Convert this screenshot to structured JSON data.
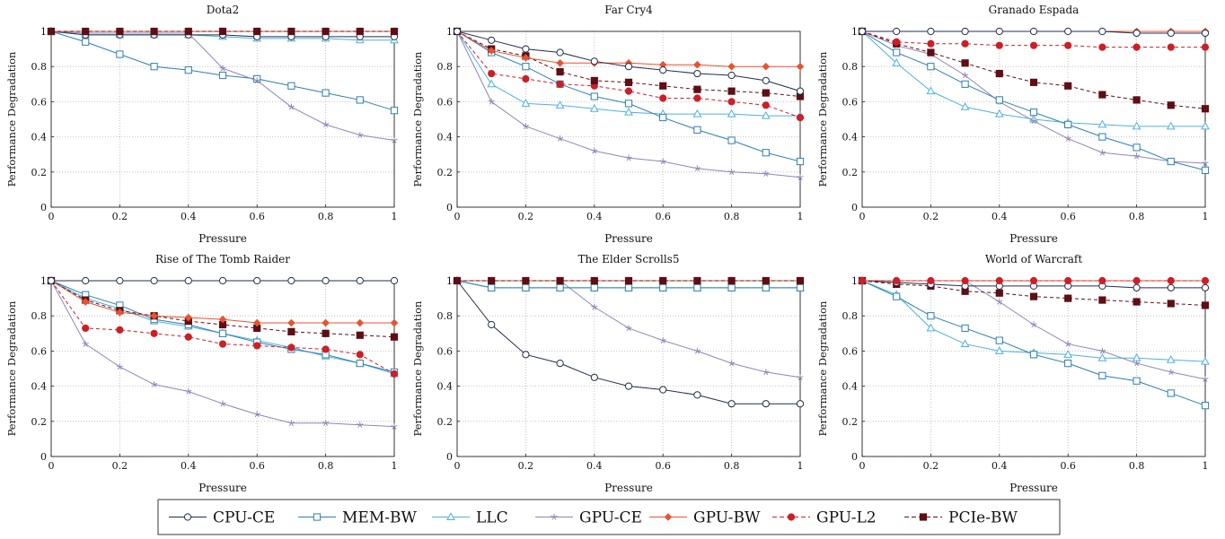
{
  "colors": {
    "CPU-CE": "#1f2d4d",
    "MEM-BW": "#2e7fb0",
    "LLC": "#4fb0dc",
    "GPU-CE": "#8f86b8",
    "GPU-BW": "#e8532f",
    "GPU-L2": "#cc1f26",
    "PCIe-BW": "#5e0e14"
  },
  "legend": {
    "placement": "bottom-center",
    "entries": [
      {
        "name": "CPU-CE",
        "marker": "circle",
        "dash": false
      },
      {
        "name": "MEM-BW",
        "marker": "square",
        "dash": false
      },
      {
        "name": "LLC",
        "marker": "triangle",
        "dash": false
      },
      {
        "name": "GPU-CE",
        "marker": "star",
        "dash": false
      },
      {
        "name": "GPU-BW",
        "marker": "diamond",
        "dash": false
      },
      {
        "name": "GPU-L2",
        "marker": "filled-circle",
        "dash": true
      },
      {
        "name": "PCIe-BW",
        "marker": "filled-square",
        "dash": true
      }
    ]
  },
  "chart_data": [
    {
      "type": "line",
      "title": "Dota2",
      "xlabel": "Pressure",
      "ylabel": "Performance Degradation",
      "xlim": [
        0,
        1
      ],
      "ylim": [
        0,
        1
      ],
      "x": [
        0,
        0.1,
        0.2,
        0.3,
        0.4,
        0.5,
        0.6,
        0.7,
        0.8,
        0.9,
        1
      ],
      "xticks": [
        "0",
        "0.2",
        "0.4",
        "0.6",
        "0.8",
        "1"
      ],
      "yticks": [
        "0",
        "0.2",
        "0.4",
        "0.6",
        "0.8",
        "1"
      ],
      "grid": true,
      "series": [
        {
          "name": "LLC",
          "values": [
            1,
            0.98,
            0.98,
            0.98,
            0.98,
            0.97,
            0.96,
            0.96,
            0.96,
            0.95,
            0.95
          ]
        },
        {
          "name": "CPU-CE",
          "values": [
            1,
            0.98,
            0.98,
            0.98,
            0.98,
            0.98,
            0.97,
            0.97,
            0.97,
            0.97,
            0.97
          ]
        },
        {
          "name": "MEM-BW",
          "values": [
            1,
            0.94,
            0.87,
            0.8,
            0.78,
            0.75,
            0.73,
            0.69,
            0.65,
            0.61,
            0.55
          ]
        },
        {
          "name": "GPU-CE",
          "values": [
            1,
            0.99,
            0.99,
            0.99,
            0.99,
            0.79,
            0.72,
            0.57,
            0.47,
            0.41,
            0.38
          ]
        },
        {
          "name": "GPU-BW",
          "values": [
            1,
            1,
            1,
            1,
            1,
            1,
            1,
            1,
            1,
            1,
            1
          ]
        },
        {
          "name": "GPU-L2",
          "values": [
            1,
            1,
            1,
            1,
            1,
            1,
            1,
            1,
            1,
            1,
            1
          ]
        },
        {
          "name": "PCIe-BW",
          "values": [
            1,
            1,
            1,
            1,
            1,
            1,
            1,
            1,
            1,
            1,
            1
          ]
        }
      ]
    },
    {
      "type": "line",
      "title": "Far Cry4",
      "xlabel": "Pressure",
      "ylabel": "Performance Degradation",
      "xlim": [
        0,
        1
      ],
      "ylim": [
        0,
        1
      ],
      "x": [
        0,
        0.1,
        0.2,
        0.3,
        0.4,
        0.5,
        0.6,
        0.7,
        0.8,
        0.9,
        1
      ],
      "xticks": [
        "0",
        "0.2",
        "0.4",
        "0.6",
        "0.8",
        "1"
      ],
      "yticks": [
        "0",
        "0.2",
        "0.4",
        "0.6",
        "0.8",
        "1"
      ],
      "grid": true,
      "series": [
        {
          "name": "GPU-CE",
          "values": [
            1,
            0.6,
            0.46,
            0.39,
            0.32,
            0.28,
            0.26,
            0.22,
            0.2,
            0.19,
            0.17
          ]
        },
        {
          "name": "LLC",
          "values": [
            1,
            0.7,
            0.59,
            0.58,
            0.56,
            0.54,
            0.53,
            0.53,
            0.53,
            0.52,
            0.52
          ]
        },
        {
          "name": "MEM-BW",
          "values": [
            1,
            0.88,
            0.8,
            0.7,
            0.63,
            0.59,
            0.51,
            0.44,
            0.38,
            0.31,
            0.26
          ]
        },
        {
          "name": "GPU-L2",
          "values": [
            1,
            0.76,
            0.73,
            0.7,
            0.69,
            0.66,
            0.62,
            0.62,
            0.6,
            0.58,
            0.51
          ]
        },
        {
          "name": "PCIe-BW",
          "values": [
            1,
            0.9,
            0.86,
            0.77,
            0.72,
            0.71,
            0.69,
            0.67,
            0.66,
            0.65,
            0.63
          ]
        },
        {
          "name": "GPU-BW",
          "values": [
            1,
            0.89,
            0.85,
            0.82,
            0.82,
            0.82,
            0.81,
            0.81,
            0.8,
            0.8,
            0.8
          ]
        },
        {
          "name": "CPU-CE",
          "values": [
            1,
            0.95,
            0.9,
            0.88,
            0.83,
            0.8,
            0.78,
            0.76,
            0.75,
            0.72,
            0.66
          ]
        }
      ]
    },
    {
      "type": "line",
      "title": "Granado Espada",
      "xlabel": "Pressure",
      "ylabel": "Performance Degradation",
      "xlim": [
        0,
        1
      ],
      "ylim": [
        0,
        1
      ],
      "x": [
        0,
        0.1,
        0.2,
        0.3,
        0.4,
        0.5,
        0.6,
        0.7,
        0.8,
        0.9,
        1
      ],
      "xticks": [
        "0",
        "0.2",
        "0.4",
        "0.6",
        "0.8",
        "1"
      ],
      "yticks": [
        "0",
        "0.2",
        "0.4",
        "0.6",
        "0.8",
        "1"
      ],
      "grid": true,
      "series": [
        {
          "name": "LLC",
          "values": [
            1,
            0.82,
            0.66,
            0.57,
            0.53,
            0.5,
            0.48,
            0.47,
            0.46,
            0.46,
            0.46
          ]
        },
        {
          "name": "GPU-CE",
          "values": [
            1,
            0.92,
            0.87,
            0.75,
            0.6,
            0.49,
            0.39,
            0.31,
            0.29,
            0.26,
            0.25
          ]
        },
        {
          "name": "MEM-BW",
          "values": [
            1,
            0.88,
            0.8,
            0.7,
            0.61,
            0.54,
            0.47,
            0.4,
            0.34,
            0.26,
            0.21
          ]
        },
        {
          "name": "PCIe-BW",
          "values": [
            1,
            0.93,
            0.88,
            0.82,
            0.76,
            0.71,
            0.69,
            0.64,
            0.61,
            0.58,
            0.56
          ]
        },
        {
          "name": "GPU-L2",
          "values": [
            1,
            0.94,
            0.93,
            0.93,
            0.92,
            0.92,
            0.92,
            0.91,
            0.91,
            0.91,
            0.91
          ]
        },
        {
          "name": "GPU-BW",
          "values": [
            1,
            1,
            1,
            1,
            1,
            1,
            1,
            1,
            1,
            1,
            1
          ]
        },
        {
          "name": "CPU-CE",
          "values": [
            1,
            1,
            1,
            1,
            1,
            1,
            1,
            1,
            0.99,
            0.99,
            0.99
          ]
        }
      ]
    },
    {
      "type": "line",
      "title": "Rise of The Tomb Raider",
      "xlabel": "Pressure",
      "ylabel": "Performance Degradation",
      "xlim": [
        0,
        1
      ],
      "ylim": [
        0,
        1
      ],
      "x": [
        0,
        0.1,
        0.2,
        0.3,
        0.4,
        0.5,
        0.6,
        0.7,
        0.8,
        0.9,
        1
      ],
      "xticks": [
        "0",
        "0.2",
        "0.4",
        "0.6",
        "0.8",
        "1"
      ],
      "yticks": [
        "0",
        "0.2",
        "0.4",
        "0.6",
        "0.8",
        "1"
      ],
      "grid": true,
      "series": [
        {
          "name": "GPU-CE",
          "values": [
            1,
            0.64,
            0.51,
            0.41,
            0.37,
            0.3,
            0.24,
            0.19,
            0.19,
            0.18,
            0.17
          ]
        },
        {
          "name": "LLC",
          "values": [
            1,
            0.9,
            0.84,
            0.77,
            0.74,
            0.7,
            0.66,
            0.62,
            0.57,
            0.53,
            0.47
          ]
        },
        {
          "name": "MEM-BW",
          "values": [
            1,
            0.92,
            0.86,
            0.78,
            0.75,
            0.7,
            0.65,
            0.61,
            0.58,
            0.53,
            0.48
          ]
        },
        {
          "name": "GPU-L2",
          "values": [
            1,
            0.73,
            0.72,
            0.7,
            0.68,
            0.64,
            0.63,
            0.62,
            0.61,
            0.58,
            0.47
          ]
        },
        {
          "name": "PCIe-BW",
          "values": [
            1,
            0.89,
            0.83,
            0.8,
            0.77,
            0.75,
            0.73,
            0.71,
            0.7,
            0.69,
            0.68
          ]
        },
        {
          "name": "GPU-BW",
          "values": [
            1,
            0.88,
            0.82,
            0.8,
            0.79,
            0.78,
            0.76,
            0.76,
            0.76,
            0.76,
            0.76
          ]
        },
        {
          "name": "CPU-CE",
          "values": [
            1,
            1,
            1,
            1,
            1,
            1,
            1,
            1,
            1,
            1,
            1
          ]
        }
      ]
    },
    {
      "type": "line",
      "title": "The Elder Scrolls5",
      "xlabel": "Pressure",
      "ylabel": "Performance Degradation",
      "xlim": [
        0,
        1
      ],
      "ylim": [
        0,
        1
      ],
      "x": [
        0,
        0.1,
        0.2,
        0.3,
        0.4,
        0.5,
        0.6,
        0.7,
        0.8,
        0.9,
        1
      ],
      "xticks": [
        "0",
        "0.2",
        "0.4",
        "0.6",
        "0.8",
        "1"
      ],
      "yticks": [
        "0",
        "0.2",
        "0.4",
        "0.6",
        "0.8",
        "1"
      ],
      "grid": true,
      "series": [
        {
          "name": "CPU-CE",
          "values": [
            1,
            0.75,
            0.58,
            0.53,
            0.45,
            0.4,
            0.38,
            0.35,
            0.3,
            0.3,
            0.3
          ]
        },
        {
          "name": "GPU-CE",
          "values": [
            1,
            1,
            1,
            1,
            0.85,
            0.73,
            0.66,
            0.6,
            0.53,
            0.48,
            0.45
          ]
        },
        {
          "name": "LLC",
          "values": [
            1,
            0.96,
            0.96,
            0.96,
            0.96,
            0.96,
            0.96,
            0.96,
            0.96,
            0.96,
            0.96
          ]
        },
        {
          "name": "MEM-BW",
          "values": [
            1,
            0.96,
            0.96,
            0.96,
            0.96,
            0.96,
            0.96,
            0.96,
            0.96,
            0.96,
            0.96
          ]
        },
        {
          "name": "GPU-BW",
          "values": [
            1,
            1,
            1,
            1,
            1,
            1,
            1,
            1,
            1,
            1,
            1
          ]
        },
        {
          "name": "GPU-L2",
          "values": [
            1,
            1,
            1,
            1,
            1,
            1,
            1,
            1,
            1,
            1,
            1
          ]
        },
        {
          "name": "PCIe-BW",
          "values": [
            1,
            1,
            1,
            1,
            1,
            1,
            1,
            1,
            1,
            1,
            1
          ]
        }
      ]
    },
    {
      "type": "line",
      "title": "World of Warcraft",
      "xlabel": "Pressure",
      "ylabel": "Performance Degradation",
      "xlim": [
        0,
        1
      ],
      "ylim": [
        0,
        1
      ],
      "x": [
        0,
        0.1,
        0.2,
        0.3,
        0.4,
        0.5,
        0.6,
        0.7,
        0.8,
        0.9,
        1
      ],
      "xticks": [
        "0",
        "0.2",
        "0.4",
        "0.6",
        "0.8",
        "1"
      ],
      "yticks": [
        "0",
        "0.2",
        "0.4",
        "0.6",
        "0.8",
        "1"
      ],
      "grid": true,
      "series": [
        {
          "name": "LLC",
          "values": [
            1,
            0.92,
            0.73,
            0.64,
            0.6,
            0.59,
            0.58,
            0.56,
            0.56,
            0.55,
            0.54
          ]
        },
        {
          "name": "MEM-BW",
          "values": [
            1,
            0.91,
            0.8,
            0.73,
            0.66,
            0.58,
            0.53,
            0.46,
            0.43,
            0.36,
            0.29
          ]
        },
        {
          "name": "GPU-CE",
          "values": [
            1,
            1,
            1,
            1,
            0.88,
            0.75,
            0.64,
            0.6,
            0.53,
            0.48,
            0.44
          ]
        },
        {
          "name": "PCIe-BW",
          "values": [
            1,
            0.98,
            0.97,
            0.94,
            0.93,
            0.91,
            0.9,
            0.89,
            0.88,
            0.87,
            0.86
          ]
        },
        {
          "name": "CPU-CE",
          "values": [
            1,
            0.99,
            0.98,
            0.97,
            0.97,
            0.97,
            0.97,
            0.97,
            0.96,
            0.96,
            0.96
          ]
        },
        {
          "name": "GPU-BW",
          "values": [
            1,
            1,
            1,
            1,
            1,
            1,
            1,
            1,
            1,
            1,
            1
          ]
        },
        {
          "name": "GPU-L2",
          "values": [
            1,
            1,
            1,
            1,
            1,
            1,
            1,
            1,
            1,
            1,
            1
          ]
        }
      ]
    }
  ]
}
